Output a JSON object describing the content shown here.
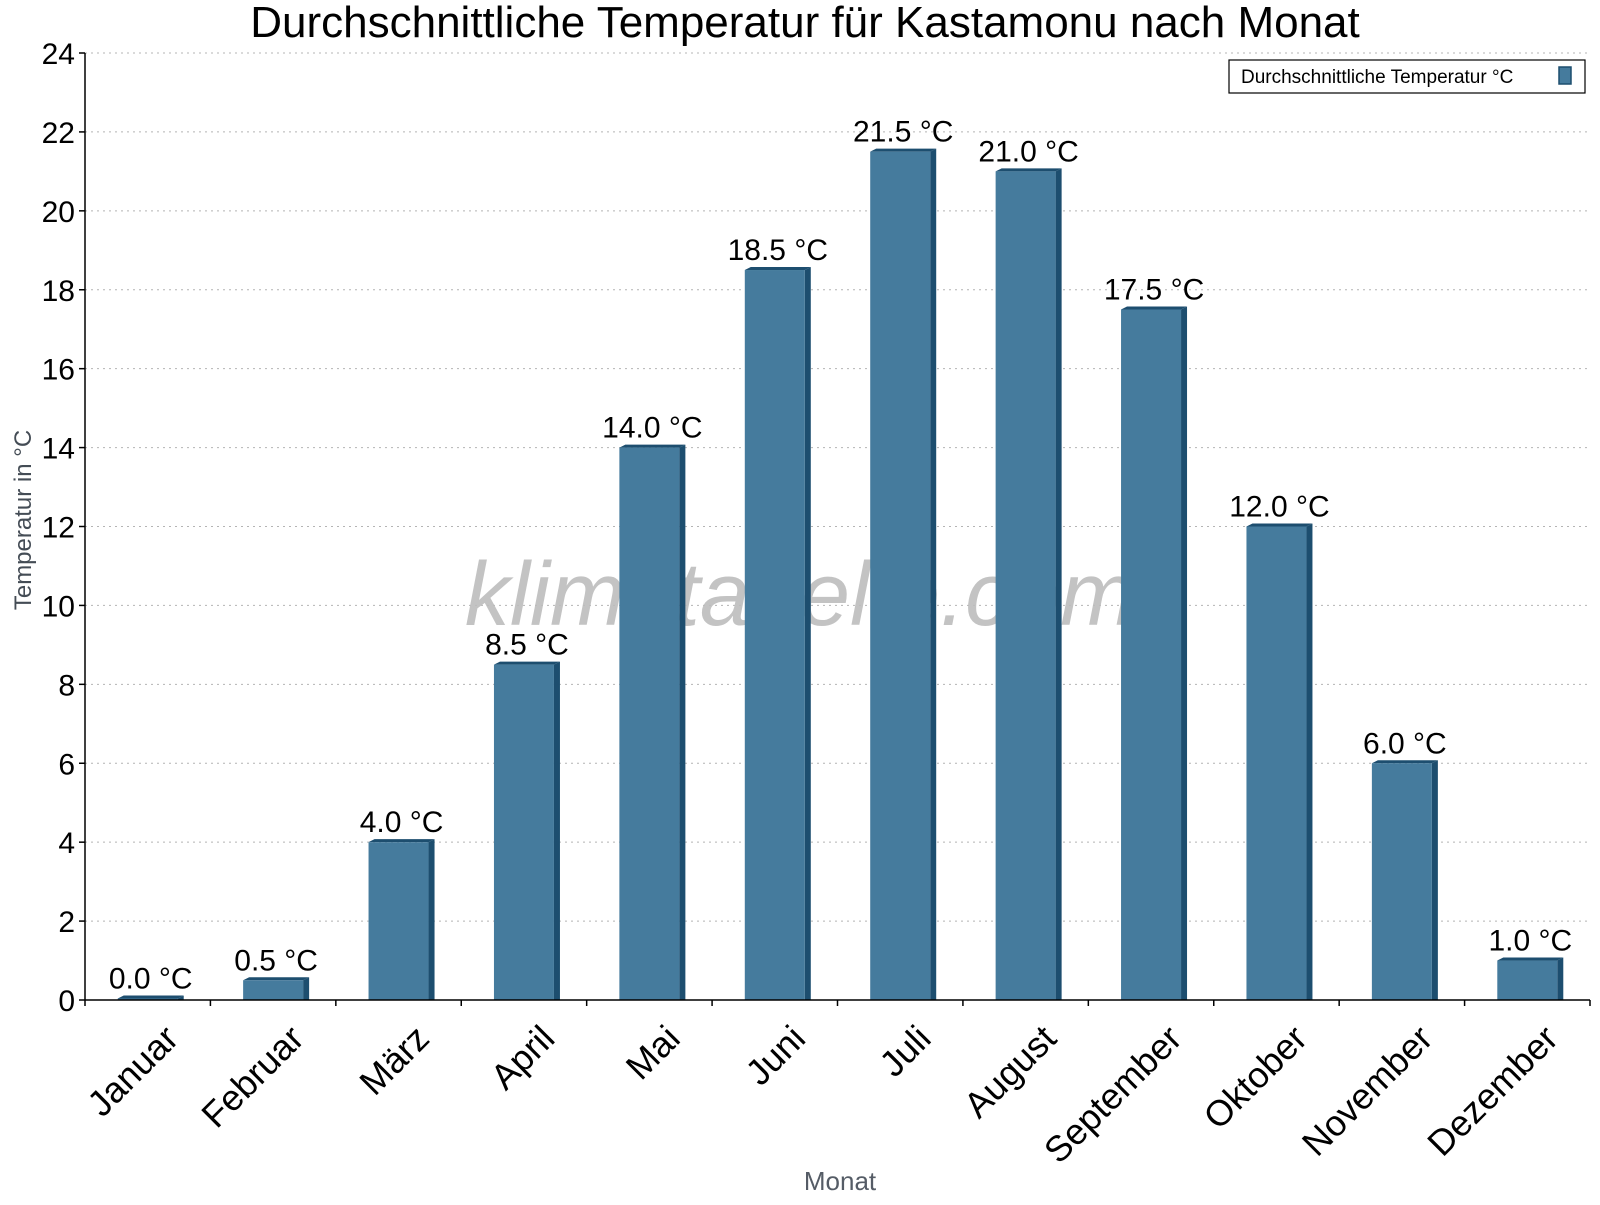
{
  "chart_data": {
    "type": "bar",
    "title": "Durchschnittliche Temperatur für Kastamonu nach Monat",
    "xlabel": "Monat",
    "ylabel": "Temperatur in °C",
    "categories": [
      "Januar",
      "Februar",
      "März",
      "April",
      "Mai",
      "Juni",
      "Juli",
      "August",
      "September",
      "Oktober",
      "November",
      "Dezember"
    ],
    "series": [
      {
        "name": "Durchschnittliche Temperatur °C",
        "values": [
          0.0,
          0.5,
          4.0,
          8.5,
          14.0,
          18.5,
          21.5,
          21.0,
          17.5,
          12.0,
          6.0,
          1.0
        ],
        "data_labels": [
          "0.0 °C",
          "0.5 °C",
          "4.0 °C",
          "8.5 °C",
          "14.0 °C",
          "18.5 °C",
          "21.5 °C",
          "21.0 °C",
          "17.5 °C",
          "12.0 °C",
          "6.0 °C",
          "1.0 °C"
        ],
        "color": "#457b9d",
        "edge_color": "#1d4e6f"
      }
    ],
    "ylim": [
      0,
      24
    ],
    "yticks": [
      0,
      2,
      4,
      6,
      8,
      10,
      12,
      14,
      16,
      18,
      20,
      22,
      24
    ],
    "grid": true,
    "legend_position": "top-right",
    "watermark": "klimatabelle.com"
  }
}
